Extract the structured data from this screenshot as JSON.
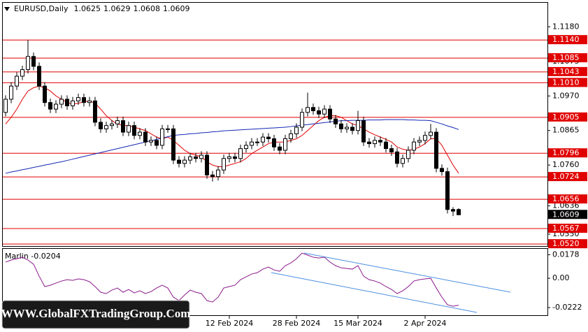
{
  "chart_data": [
    {
      "type": "candlestick",
      "title": "EURUSD,Daily",
      "categories": [
        null,
        null,
        null,
        null,
        null,
        null,
        null,
        null,
        null,
        null,
        null,
        null,
        null,
        null,
        null,
        null,
        null,
        null,
        null,
        null,
        null,
        null,
        null,
        null,
        null,
        null,
        null,
        null,
        null,
        null,
        null,
        null,
        null,
        null,
        null,
        null,
        null,
        null,
        null,
        null,
        "12 Feb 2024",
        null,
        null,
        null,
        null,
        null,
        null,
        null,
        null,
        null,
        null,
        null,
        "28 Feb 2024",
        null,
        null,
        null,
        null,
        null,
        null,
        null,
        null,
        null,
        null,
        "15 Mar 2024",
        null,
        null,
        null,
        null,
        null,
        null,
        null,
        null,
        null,
        null,
        null,
        "2 Apr 2024",
        null,
        null,
        null,
        null,
        null,
        null
      ],
      "open": [
        1.092,
        1.096,
        1.1,
        1.103,
        1.105,
        1.109,
        1.106,
        1.1,
        1.095,
        1.093,
        1.0945,
        1.096,
        1.094,
        1.0955,
        1.0965,
        1.095,
        1.0955,
        1.089,
        1.087,
        1.088,
        1.0885,
        1.0895,
        1.086,
        1.088,
        1.085,
        1.086,
        1.083,
        1.0835,
        1.082,
        1.087,
        1.087,
        1.0775,
        1.0765,
        1.0775,
        1.0785,
        1.078,
        1.079,
        1.073,
        1.0725,
        1.0745,
        1.078,
        1.0785,
        1.078,
        1.081,
        1.082,
        1.083,
        1.083,
        1.0845,
        1.084,
        1.0815,
        1.0805,
        1.084,
        1.0855,
        1.0875,
        1.092,
        1.0935,
        1.0925,
        1.0915,
        1.093,
        1.09,
        1.0885,
        1.087,
        1.0875,
        1.0865,
        1.0895,
        1.083,
        1.0825,
        1.0835,
        1.083,
        1.081,
        1.08,
        1.0765,
        1.078,
        1.0805,
        1.083,
        1.0835,
        1.085,
        1.086,
        1.075,
        1.074,
        1.0625,
        1.0625
      ],
      "high": [
        1.0972,
        1.1012,
        1.1042,
        1.1062,
        1.114,
        1.1102,
        1.1072,
        1.1012,
        1.0962,
        1.0957,
        1.0972,
        1.0972,
        1.0967,
        1.0977,
        1.0977,
        1.0967,
        1.0967,
        1.0902,
        1.0892,
        1.0897,
        1.0907,
        1.0907,
        1.0892,
        1.0892,
        1.0872,
        1.0872,
        1.0847,
        1.0847,
        1.0882,
        1.0882,
        1.0882,
        1.0787,
        1.0787,
        1.0797,
        1.0797,
        1.0802,
        1.0802,
        1.0742,
        1.0757,
        1.0792,
        1.0797,
        1.0797,
        1.0822,
        1.0832,
        1.0842,
        1.0842,
        1.0857,
        1.0857,
        1.0852,
        1.0827,
        1.0852,
        1.0867,
        1.0887,
        1.0932,
        1.098,
        1.0947,
        1.0937,
        1.0942,
        1.0942,
        1.0912,
        1.0897,
        1.0887,
        1.0887,
        1.0925,
        1.0907,
        1.0842,
        1.0847,
        1.0847,
        1.0842,
        1.0822,
        1.0812,
        1.0792,
        1.0817,
        1.0842,
        1.0847,
        1.0862,
        1.0885,
        1.0872,
        1.0762,
        1.0752,
        1.0632,
        1.0629
      ],
      "low": [
        1.0908,
        1.0948,
        1.0988,
        1.1018,
        1.1038,
        1.1048,
        1.0988,
        1.0938,
        1.0918,
        1.0918,
        1.0933,
        1.0928,
        1.0928,
        1.0943,
        1.0938,
        1.0938,
        1.0878,
        1.0858,
        1.0858,
        1.0868,
        1.0873,
        1.0848,
        1.0848,
        1.0838,
        1.0838,
        1.0818,
        1.0818,
        1.0808,
        1.0808,
        1.0858,
        1.0763,
        1.0753,
        1.0753,
        1.0763,
        1.0768,
        1.0768,
        1.0718,
        1.071,
        1.0713,
        1.0733,
        1.0768,
        1.0768,
        1.0768,
        1.0798,
        1.0808,
        1.0818,
        1.0818,
        1.0828,
        1.0803,
        1.0793,
        1.0793,
        1.0828,
        1.0843,
        1.0863,
        1.0908,
        1.0913,
        1.0903,
        1.0903,
        1.0888,
        1.0873,
        1.0858,
        1.0858,
        1.0853,
        1.0853,
        1.0818,
        1.0813,
        1.0813,
        1.0818,
        1.0798,
        1.0788,
        1.0753,
        1.0753,
        1.0768,
        1.0793,
        1.0818,
        1.0823,
        1.0838,
        1.0738,
        1.0728,
        1.0613,
        1.0605,
        1.0608
      ],
      "close": [
        1.096,
        1.1,
        1.103,
        1.105,
        1.109,
        1.106,
        1.1,
        1.095,
        1.093,
        1.0945,
        1.096,
        1.094,
        1.0955,
        1.0965,
        1.095,
        1.0955,
        1.089,
        1.087,
        1.088,
        1.0885,
        1.0895,
        1.086,
        1.088,
        1.085,
        1.086,
        1.083,
        1.0835,
        1.082,
        1.087,
        1.087,
        1.0775,
        1.0765,
        1.0775,
        1.0785,
        1.078,
        1.079,
        1.073,
        1.0725,
        1.0745,
        1.078,
        1.0785,
        1.078,
        1.081,
        1.082,
        1.083,
        1.083,
        1.0845,
        1.084,
        1.0815,
        1.0805,
        1.084,
        1.0855,
        1.0875,
        1.092,
        1.0935,
        1.0925,
        1.0915,
        1.093,
        1.09,
        1.0885,
        1.087,
        1.0875,
        1.0865,
        1.0895,
        1.083,
        1.0825,
        1.0835,
        1.083,
        1.081,
        1.08,
        1.0765,
        1.078,
        1.0805,
        1.083,
        1.0835,
        1.085,
        1.086,
        1.075,
        1.074,
        1.0625,
        1.062,
        1.0609
      ],
      "series": [
        {
          "color": "#e00000",
          "values": [
            1.0885,
            1.0905,
            1.093,
            1.096,
            1.0985,
            1.0995,
            1.1,
            1.0995,
            1.0985,
            1.097,
            1.096,
            1.095,
            1.0945,
            1.0948,
            1.0952,
            1.0955,
            1.0948,
            1.093,
            1.091,
            1.0895,
            1.0885,
            1.088,
            1.088,
            1.0875,
            1.087,
            1.0865,
            1.0855,
            1.0845,
            1.084,
            1.0845,
            1.0835,
            1.082,
            1.0805,
            1.0795,
            1.079,
            1.0785,
            1.077,
            1.076,
            1.0755,
            1.0755,
            1.076,
            1.0765,
            1.077,
            1.078,
            1.0795,
            1.0805,
            1.0815,
            1.0825,
            1.083,
            1.083,
            1.083,
            1.0835,
            1.084,
            1.085,
            1.0865,
            1.088,
            1.0895,
            1.0905,
            1.091,
            1.091,
            1.0905,
            1.0895,
            1.0885,
            1.088,
            1.087,
            1.086,
            1.0852,
            1.0845,
            1.0838,
            1.083,
            1.0815,
            1.0808,
            1.0805,
            1.0808,
            1.0815,
            1.0825,
            1.084,
            1.084,
            1.082,
            1.079,
            1.076,
            1.0735
          ]
        },
        {
          "color": "#1428b4",
          "values": [
            1.0735,
            1.0739,
            1.0742,
            1.0746,
            1.0749,
            1.0753,
            1.0756,
            1.076,
            1.0763,
            1.0767,
            1.077,
            1.0774,
            1.0778,
            1.0782,
            1.0786,
            1.079,
            1.0794,
            1.0798,
            1.0802,
            1.0806,
            1.081,
            1.0814,
            1.0818,
            1.0822,
            1.0826,
            1.083,
            1.0834,
            1.0838,
            1.0842,
            1.0846,
            1.085,
            1.0852,
            1.0853,
            1.0855,
            1.0856,
            1.0858,
            1.0859,
            1.0861,
            1.0862,
            1.0864,
            1.0865,
            1.0866,
            1.0867,
            1.0868,
            1.0869,
            1.087,
            1.0871,
            1.0872,
            1.0873,
            1.0874,
            1.0875,
            1.0877,
            1.0879,
            1.0881,
            1.0883,
            1.0885,
            1.0887,
            1.0889,
            1.0891,
            1.0893,
            1.0895,
            1.0895,
            1.0896,
            1.0896,
            1.0896,
            1.0897,
            1.0897,
            1.0897,
            1.0898,
            1.0898,
            1.0898,
            1.0898,
            1.0897,
            1.0897,
            1.0896,
            1.0896,
            1.0895,
            1.089,
            1.0885,
            1.0879,
            1.0874,
            1.0868
          ]
        }
      ],
      "levels": [
        {
          "value": 1.114,
          "label": "1.1140"
        },
        {
          "value": 1.1085,
          "label": "1.1085"
        },
        {
          "value": 1.1043,
          "label": "1.1043"
        },
        {
          "value": 1.101,
          "label": "1.1010"
        },
        {
          "value": 1.0905,
          "label": "1.0905"
        },
        {
          "value": 1.0796,
          "label": "1.0796"
        },
        {
          "value": 1.0724,
          "label": "1.0724"
        },
        {
          "value": 1.0656,
          "label": "1.0656"
        },
        {
          "value": 1.0567,
          "label": "1.0567"
        },
        {
          "value": 1.052,
          "label": "1.0520"
        }
      ],
      "level_color": "#e00000",
      "current_price": {
        "value": 1.0609,
        "label": "1.0609"
      },
      "ylim": [
        1.0514,
        1.1253
      ],
      "yticks": [
        {
          "value": 1.118,
          "label": "1.1180"
        },
        {
          "value": 1.1075,
          "label": "1.1075"
        },
        {
          "value": 1.097,
          "label": "1.0970"
        },
        {
          "value": 1.0865,
          "label": "1.0865"
        },
        {
          "value": 1.076,
          "label": "1.0760"
        },
        {
          "value": 1.0636,
          "label": "1.0636"
        },
        {
          "value": 1.055,
          "label": "1.0550"
        }
      ],
      "watermark": "WWW.GlobalFXTradingGroup.Com"
    },
    {
      "type": "line",
      "title": "Marlin -0.0204",
      "color": "#8b1a8b",
      "values": [
        0.0122,
        0.0138,
        0.0148,
        0.0159,
        0.0138,
        0.0106,
        0.0016,
        -0.0063,
        -0.0053,
        -0.0037,
        -0.0021,
        -0.0011,
        -0.0016,
        -0.0005,
        -0.0011,
        -0.0026,
        -0.0063,
        -0.0106,
        -0.0116,
        -0.009,
        -0.0074,
        -0.0106,
        -0.0085,
        -0.0111,
        -0.0095,
        -0.0116,
        -0.0101,
        -0.0074,
        -0.0053,
        -0.0074,
        -0.0143,
        -0.0169,
        -0.0127,
        -0.009,
        -0.0106,
        -0.0116,
        -0.0169,
        -0.018,
        -0.0143,
        -0.0074,
        -0.0063,
        -0.0053,
        -0.0011,
        0.0011,
        0.0032,
        0.0042,
        0.0069,
        0.0085,
        0.0063,
        0.0053,
        0.0095,
        0.0116,
        0.0148,
        0.019,
        0.0175,
        0.0159,
        0.0153,
        0.0159,
        0.0122,
        0.0095,
        0.0079,
        0.0074,
        0.0069,
        0.0095,
        0.0016,
        -0.0011,
        -0.0021,
        -0.0037,
        -0.0063,
        -0.0085,
        -0.0116,
        -0.0095,
        -0.0063,
        -0.0021,
        -0.0011,
        -0.0005,
        0.0,
        -0.0074,
        -0.0143,
        -0.0201,
        -0.0212,
        -0.0204
      ],
      "ylim": [
        -0.028,
        0.0228
      ],
      "yticks": [
        0.0178,
        {
          "value": 0,
          "label": "0.00"
        },
        -0.0222
      ]
    }
  ]
}
